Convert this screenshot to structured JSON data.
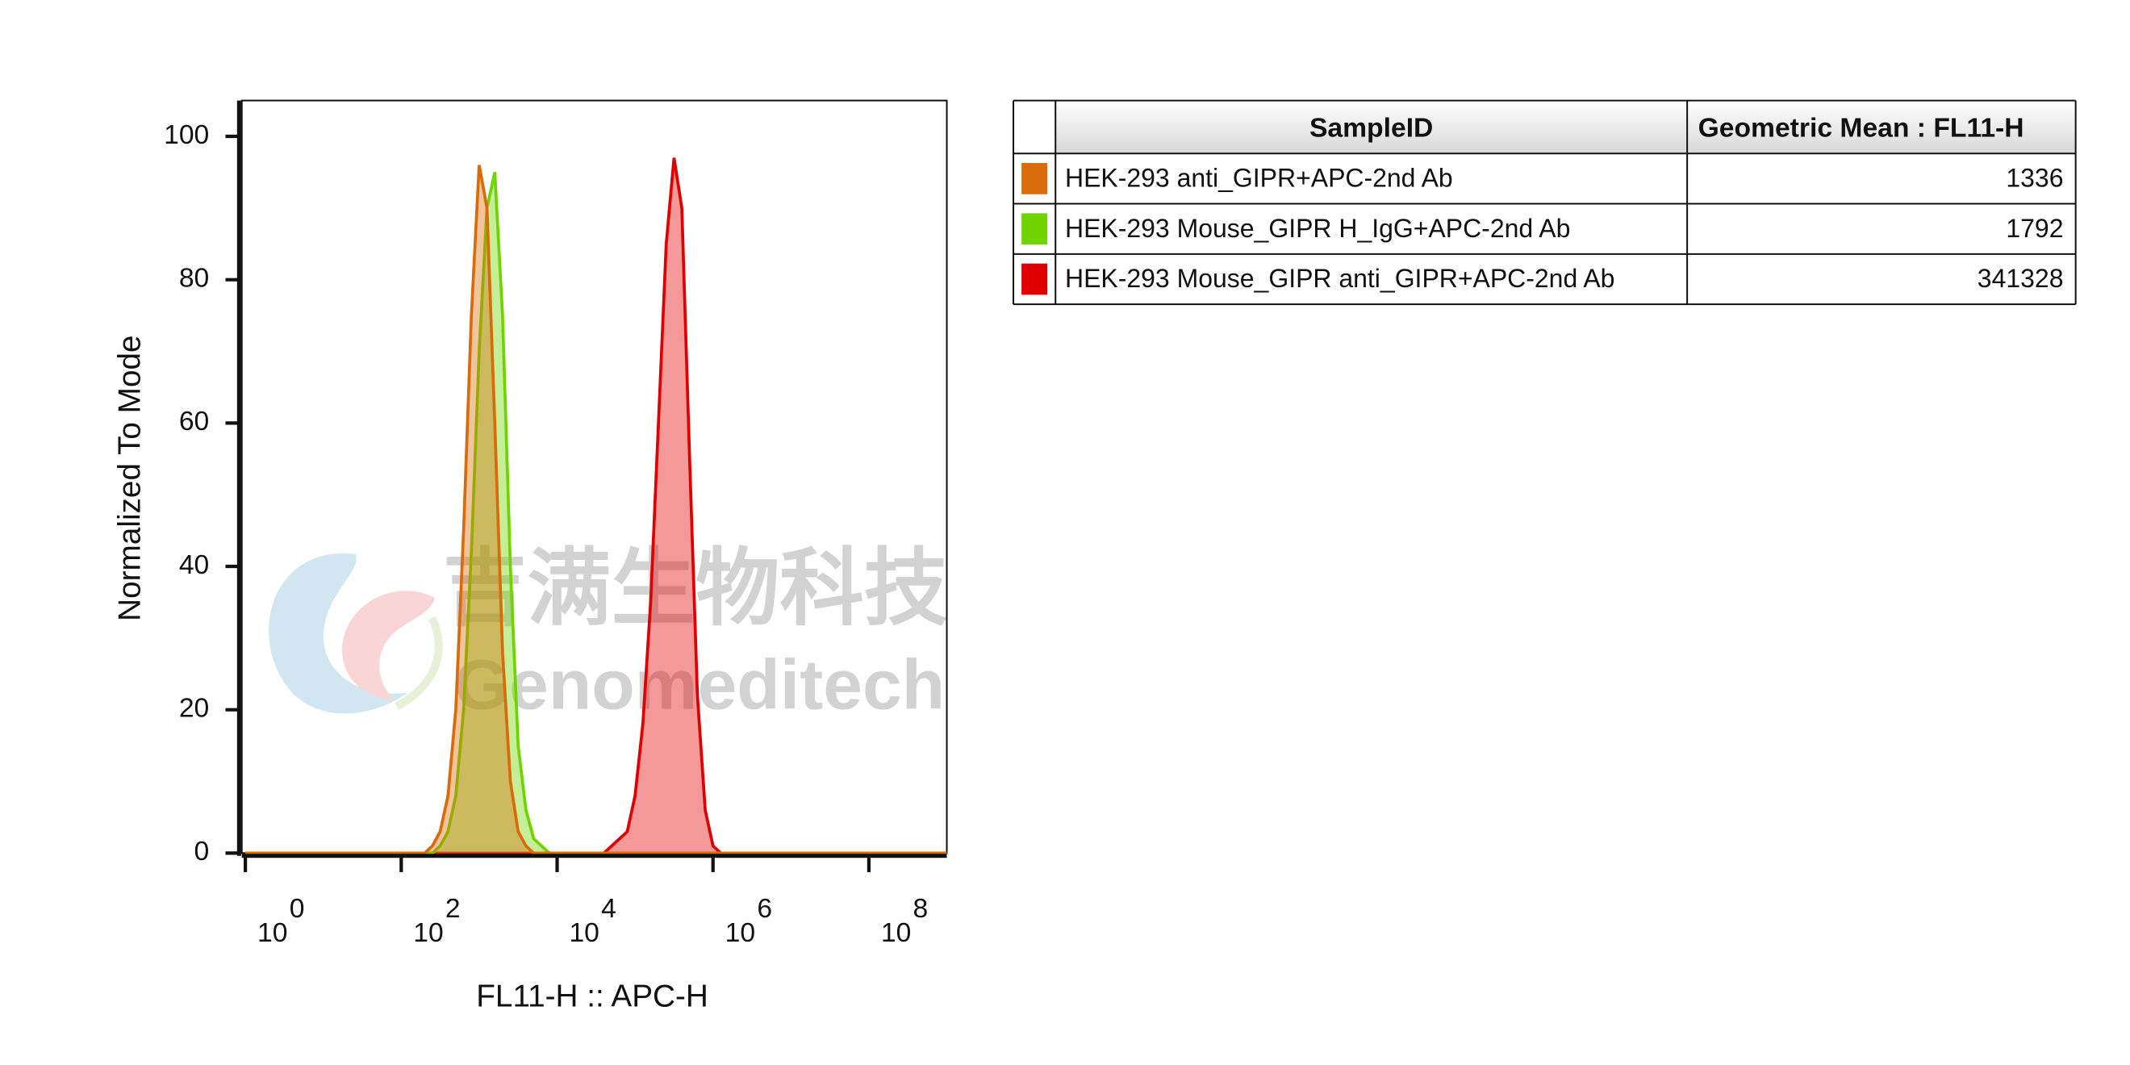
{
  "chart_data": {
    "type": "histogram",
    "x_label": "FL11-H :: APC-H",
    "y_label": "Normalized To Mode",
    "watermark": [
      "吉满生物科技",
      "Genomeditech"
    ],
    "x_scale": "log",
    "xlim": [
      0.9,
      1000000000
    ],
    "xticks": [
      {
        "value": 1,
        "label": "10",
        "power": "0"
      },
      {
        "value": 100,
        "label": "10",
        "power": "2"
      },
      {
        "value": 10000,
        "label": "10",
        "power": "4"
      },
      {
        "value": 1000000,
        "label": "10",
        "power": "6"
      },
      {
        "value": 100000000,
        "label": "10",
        "power": "8"
      }
    ],
    "ylim": [
      0,
      105
    ],
    "yticks": [
      0,
      20,
      40,
      60,
      80,
      100
    ],
    "x": [
      1,
      158,
      200,
      251,
      316,
      398,
      501,
      631,
      794,
      1000,
      1259,
      1585,
      1995,
      2512,
      3162,
      3981,
      5012,
      6310,
      7943,
      10000,
      12589,
      15849,
      19953,
      25119,
      31623,
      39811,
      50119,
      63096,
      79433,
      100000,
      125893,
      158489,
      199526,
      251189,
      316228,
      398107,
      501187,
      630957,
      794328,
      1000000,
      1258925,
      1584893,
      1995262,
      2511886,
      1000000000
    ],
    "table_headers": [
      "SampleID",
      "Geometric Mean : FL11-H"
    ],
    "series": [
      {
        "name": "HEK-293 Mouse_GIPR anti_GIPR+APC-2nd Ab",
        "color": "#e00000",
        "geometric_mean": 341328,
        "values": [
          0,
          0,
          0,
          0,
          0,
          0,
          0,
          0,
          0,
          0,
          0,
          0,
          0,
          0,
          0,
          0,
          0,
          0,
          0,
          0,
          0,
          0,
          0,
          0,
          0,
          0,
          1,
          2,
          3,
          8,
          18,
          35,
          60,
          85,
          97,
          90,
          55,
          22,
          6,
          1,
          0,
          0,
          0,
          0,
          0
        ]
      },
      {
        "name": "HEK-293 Mouse_GIPR H_IgG+APC-2nd Ab",
        "color": "#6fd400",
        "geometric_mean": 1792,
        "values": [
          0,
          0,
          0,
          0,
          1,
          3,
          8,
          20,
          42,
          70,
          90,
          95,
          75,
          40,
          15,
          6,
          2,
          1,
          0,
          0,
          0,
          0,
          0,
          0,
          0,
          0,
          0,
          0,
          0,
          0,
          0,
          0,
          0,
          0,
          0,
          0,
          0,
          0,
          0,
          0,
          0,
          0,
          0,
          0,
          0
        ]
      },
      {
        "name": "HEK-293 anti_GIPR+APC-2nd Ab",
        "color": "#d96b0a",
        "geometric_mean": 1336,
        "values": [
          0,
          0,
          0,
          1,
          3,
          8,
          20,
          45,
          75,
          96,
          90,
          60,
          28,
          10,
          3,
          1,
          0,
          0,
          0,
          0,
          0,
          0,
          0,
          0,
          0,
          0,
          0,
          0,
          0,
          0,
          0,
          0,
          0,
          0,
          0,
          0,
          0,
          0,
          0,
          0,
          0,
          0,
          0,
          0,
          0
        ]
      }
    ],
    "table_order": [
      2,
      1,
      0
    ]
  }
}
